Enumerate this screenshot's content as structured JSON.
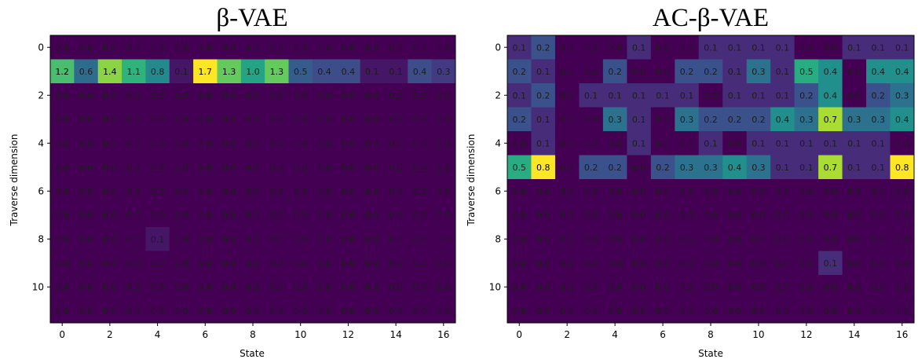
{
  "chart_data": [
    {
      "type": "heatmap",
      "title": "β-VAE",
      "xlabel": "State",
      "ylabel": "Traverse dimension",
      "x": [
        0,
        1,
        2,
        3,
        4,
        5,
        6,
        7,
        8,
        9,
        10,
        11,
        12,
        13,
        14,
        15,
        16
      ],
      "y": [
        0,
        1,
        2,
        3,
        4,
        5,
        6,
        7,
        8,
        9,
        10,
        11
      ],
      "xticks": [
        0,
        2,
        4,
        6,
        8,
        10,
        12,
        14,
        16
      ],
      "yticks": [
        0,
        2,
        4,
        6,
        8,
        10
      ],
      "vmin": 0.0,
      "vmax": 1.7,
      "colormap": "viridis",
      "values": [
        [
          0.0,
          0.0,
          0.0,
          0.0,
          0.0,
          0.0,
          0.0,
          0.0,
          0.0,
          0.0,
          0.0,
          0.0,
          0.0,
          0.0,
          0.0,
          0.0,
          0.0
        ],
        [
          1.2,
          0.6,
          1.4,
          1.1,
          0.8,
          0.1,
          1.7,
          1.3,
          1.0,
          1.3,
          0.5,
          0.4,
          0.4,
          0.1,
          0.1,
          0.4,
          0.3
        ],
        [
          0.0,
          0.0,
          0.0,
          0.0,
          0.0,
          0.0,
          0.0,
          0.0,
          0.0,
          0.0,
          0.0,
          0.0,
          0.0,
          0.0,
          0.0,
          0.0,
          0.0
        ],
        [
          0.0,
          0.0,
          0.0,
          0.0,
          0.0,
          0.0,
          0.0,
          0.0,
          0.0,
          0.0,
          0.0,
          0.0,
          0.0,
          0.0,
          0.0,
          0.0,
          0.0
        ],
        [
          0.0,
          0.0,
          0.0,
          0.0,
          0.0,
          0.0,
          0.0,
          0.0,
          0.0,
          0.0,
          0.0,
          0.0,
          0.0,
          0.0,
          0.0,
          0.0,
          0.0
        ],
        [
          0.0,
          0.0,
          0.0,
          0.0,
          0.0,
          0.0,
          0.0,
          0.0,
          0.0,
          0.0,
          0.0,
          0.0,
          0.0,
          0.0,
          0.0,
          0.0,
          0.0
        ],
        [
          0.0,
          0.0,
          0.0,
          0.0,
          0.0,
          0.0,
          0.0,
          0.0,
          0.0,
          0.0,
          0.0,
          0.0,
          0.0,
          0.0,
          0.0,
          0.0,
          0.0
        ],
        [
          0.0,
          0.0,
          0.0,
          0.0,
          0.0,
          0.0,
          0.0,
          0.0,
          0.0,
          0.0,
          0.0,
          0.0,
          0.0,
          0.0,
          0.0,
          0.0,
          0.0
        ],
        [
          0.0,
          0.0,
          0.0,
          0.0,
          0.1,
          0.0,
          0.0,
          0.0,
          0.0,
          0.0,
          0.0,
          0.0,
          0.0,
          0.0,
          0.0,
          0.0,
          0.0
        ],
        [
          0.0,
          0.0,
          0.0,
          0.0,
          0.0,
          0.0,
          0.0,
          0.0,
          0.0,
          0.0,
          0.0,
          0.0,
          0.0,
          0.0,
          0.0,
          0.0,
          0.0
        ],
        [
          0.0,
          0.0,
          0.0,
          0.0,
          0.0,
          0.0,
          0.0,
          0.0,
          0.0,
          0.0,
          0.0,
          0.0,
          0.0,
          0.0,
          0.0,
          0.0,
          0.0
        ],
        [
          0.0,
          0.0,
          0.0,
          0.0,
          0.0,
          0.0,
          0.0,
          0.0,
          0.0,
          0.0,
          0.0,
          0.0,
          0.0,
          0.0,
          0.0,
          0.0,
          0.0
        ]
      ]
    },
    {
      "type": "heatmap",
      "title": "AC-β-VAE",
      "xlabel": "State",
      "ylabel": "Traverse dimension",
      "x": [
        0,
        1,
        2,
        3,
        4,
        5,
        6,
        7,
        8,
        9,
        10,
        11,
        12,
        13,
        14,
        15,
        16
      ],
      "y": [
        0,
        1,
        2,
        3,
        4,
        5,
        6,
        7,
        8,
        9,
        10,
        11
      ],
      "xticks": [
        0,
        2,
        4,
        6,
        8,
        10,
        12,
        14,
        16
      ],
      "yticks": [
        0,
        2,
        4,
        6,
        8,
        10
      ],
      "vmin": 0.0,
      "vmax": 0.8,
      "colormap": "viridis",
      "values": [
        [
          0.1,
          0.2,
          0.0,
          0.0,
          0.0,
          0.1,
          0.0,
          0.0,
          0.1,
          0.1,
          0.1,
          0.1,
          0.0,
          0.0,
          0.1,
          0.1,
          0.1
        ],
        [
          0.2,
          0.1,
          0.0,
          0.0,
          0.2,
          0.0,
          0.0,
          0.2,
          0.2,
          0.1,
          0.3,
          0.1,
          0.5,
          0.4,
          0.0,
          0.4,
          0.4
        ],
        [
          0.1,
          0.2,
          0.0,
          0.1,
          0.1,
          0.1,
          0.1,
          0.1,
          0.0,
          0.1,
          0.1,
          0.1,
          0.2,
          0.4,
          0.0,
          0.2,
          0.3
        ],
        [
          0.2,
          0.1,
          0.0,
          0.0,
          0.3,
          0.1,
          0.0,
          0.3,
          0.2,
          0.2,
          0.2,
          0.4,
          0.3,
          0.7,
          0.3,
          0.3,
          0.4
        ],
        [
          0.0,
          0.1,
          0.0,
          0.0,
          0.0,
          0.1,
          0.0,
          0.0,
          0.1,
          0.0,
          0.1,
          0.1,
          0.1,
          0.1,
          0.1,
          0.1,
          0.0
        ],
        [
          0.5,
          0.8,
          0.0,
          0.2,
          0.2,
          0.0,
          0.2,
          0.3,
          0.3,
          0.4,
          0.3,
          0.1,
          0.1,
          0.7,
          0.1,
          0.1,
          0.8
        ],
        [
          0.0,
          0.0,
          0.0,
          0.0,
          0.0,
          0.0,
          0.0,
          0.0,
          0.0,
          0.0,
          0.0,
          0.0,
          0.0,
          0.0,
          0.0,
          0.0,
          0.0
        ],
        [
          0.0,
          0.0,
          0.0,
          0.0,
          0.0,
          0.0,
          0.0,
          0.0,
          0.0,
          0.0,
          0.0,
          0.0,
          0.0,
          0.0,
          0.0,
          0.0,
          0.0
        ],
        [
          0.0,
          0.0,
          0.0,
          0.0,
          0.0,
          0.0,
          0.0,
          0.0,
          0.0,
          0.0,
          0.0,
          0.0,
          0.0,
          0.0,
          0.0,
          0.0,
          0.0
        ],
        [
          0.0,
          0.0,
          0.0,
          0.0,
          0.0,
          0.0,
          0.0,
          0.0,
          0.0,
          0.0,
          0.0,
          0.0,
          0.0,
          0.1,
          0.0,
          0.0,
          0.0
        ],
        [
          0.0,
          0.0,
          0.0,
          0.0,
          0.0,
          0.0,
          0.0,
          0.0,
          0.0,
          0.0,
          0.0,
          0.0,
          0.0,
          0.0,
          0.0,
          0.0,
          0.0
        ],
        [
          0.0,
          0.0,
          0.0,
          0.0,
          0.0,
          0.0,
          0.0,
          0.0,
          0.0,
          0.0,
          0.0,
          0.0,
          0.0,
          0.0,
          0.0,
          0.0,
          0.0
        ]
      ]
    }
  ]
}
